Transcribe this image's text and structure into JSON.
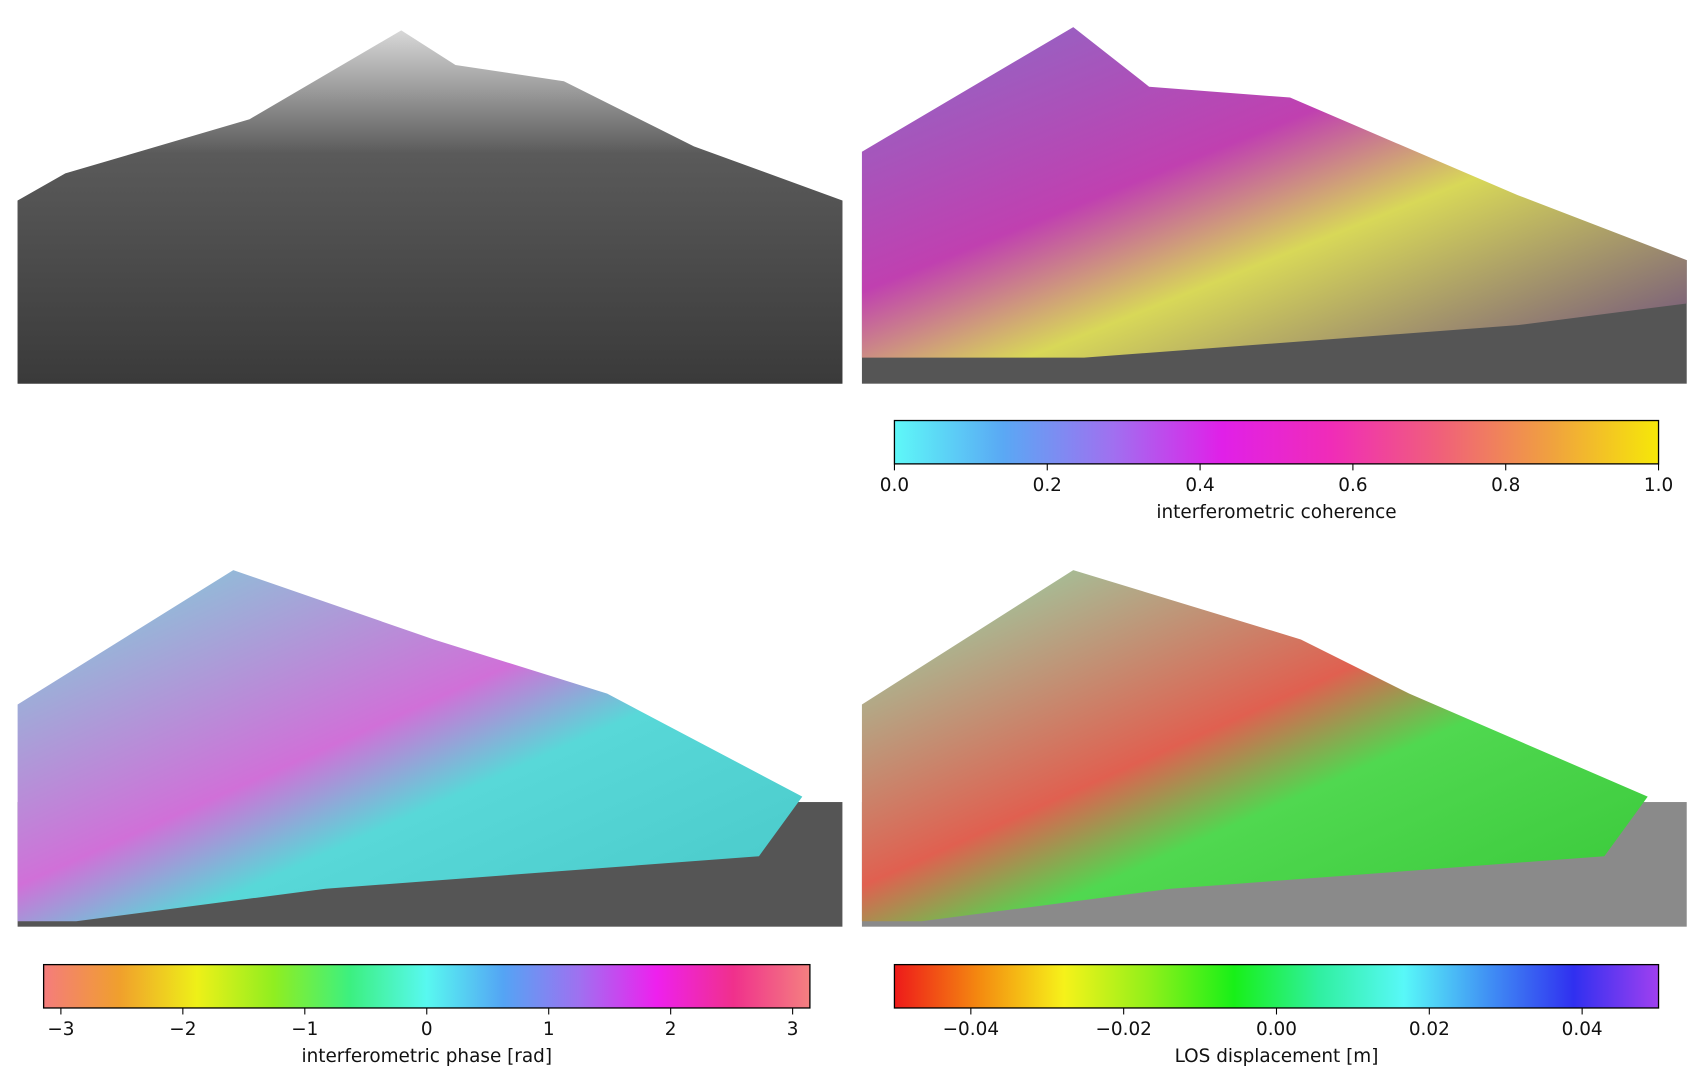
{
  "chart_data": [
    {
      "type": "colorbar",
      "xlabel": "interferometric coherence",
      "xlim": [
        0,
        1
      ],
      "xticks": [
        {
          "value": 0,
          "label": "0.0"
        },
        0.2,
        0.4,
        0.6,
        0.8,
        {
          "value": 1,
          "label": "1.0"
        }
      ],
      "colormap": [
        "#5ef8f8",
        "#5aa8f4",
        "#a070f0",
        "#e020e8",
        "#f02cb8",
        "#f0607a",
        "#f0a040",
        "#f6e808"
      ]
    },
    {
      "type": "colorbar",
      "xlabel": "interferometric phase [rad]",
      "xlim": [
        -3.14159,
        3.14159
      ],
      "xticks": [
        {
          "value": -3,
          "label": "−3"
        },
        {
          "value": -2,
          "label": "−2"
        },
        {
          "value": -1,
          "label": "−1"
        },
        0,
        1,
        2,
        3
      ],
      "colormap": [
        "#f47c7c",
        "#f0a02c",
        "#eef018",
        "#90ee20",
        "#3cf080",
        "#58f8f0",
        "#54a4f4",
        "#a070f0",
        "#ee20ee",
        "#f0308c",
        "#f48080"
      ]
    },
    {
      "type": "colorbar",
      "xlabel": "LOS displacement [m]",
      "xlim": [
        -0.05,
        0.05
      ],
      "xticks": [
        {
          "value": -0.04,
          "label": "−0.04"
        },
        {
          "value": -0.02,
          "label": "−0.02"
        },
        {
          "value": 0,
          "label": "0.00"
        },
        0.02,
        0.04
      ],
      "colormap": [
        "#ee1a1a",
        "#f48a10",
        "#f6f21a",
        "#90f01a",
        "#18f018",
        "#30f0a0",
        "#58f8f8",
        "#4090f4",
        "#3030f0",
        "#a040f0"
      ]
    }
  ]
}
